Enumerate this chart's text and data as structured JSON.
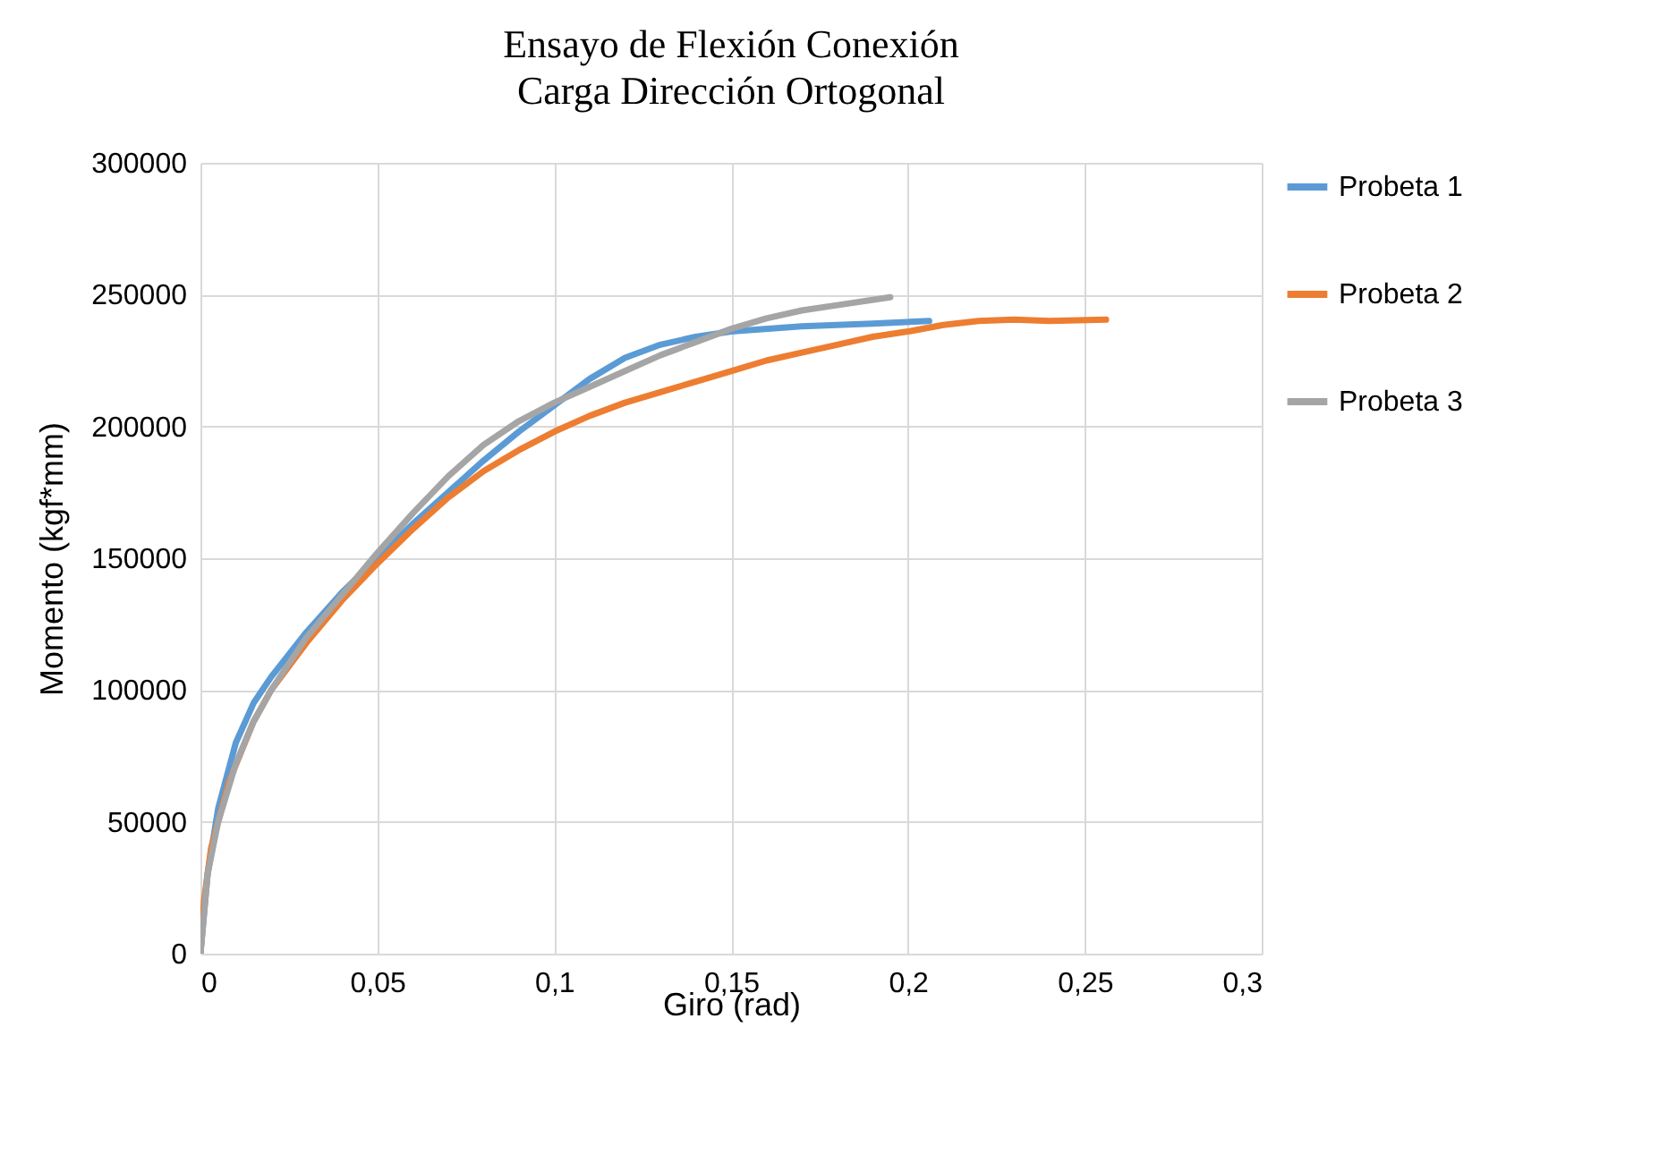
{
  "chart_data": {
    "type": "line",
    "title": "Ensayo de Flexión Conexión",
    "subtitle": "Carga Dirección Ortogonal",
    "xlabel": "Giro (rad)",
    "ylabel": "Momento (kgf*mm)",
    "xlim": [
      0,
      0.3
    ],
    "xticks": [
      0,
      {
        "value": 0.05,
        "label": "0,05"
      },
      {
        "value": 0.1,
        "label": "0,1"
      },
      {
        "value": 0.15,
        "label": "0,15"
      },
      {
        "value": 0.2,
        "label": "0,2"
      },
      {
        "value": 0.25,
        "label": "0,25"
      },
      {
        "value": 0.3,
        "label": "0,3"
      }
    ],
    "ylim": [
      0,
      300000
    ],
    "yticks": [
      0,
      50000,
      100000,
      150000,
      200000,
      250000,
      300000
    ],
    "grid": true,
    "legend": "right",
    "series": [
      {
        "name": "Probeta 1",
        "color": "#5b9bd5",
        "x": [
          0,
          0.002,
          0.005,
          0.01,
          0.015,
          0.02,
          0.03,
          0.04,
          0.05,
          0.06,
          0.07,
          0.08,
          0.09,
          0.1,
          0.11,
          0.12,
          0.13,
          0.14,
          0.15,
          0.17,
          0.19,
          0.206
        ],
        "values": [
          0,
          30000,
          55000,
          80000,
          95000,
          105000,
          122000,
          137000,
          150000,
          163000,
          175000,
          187000,
          198000,
          208000,
          218000,
          226000,
          231000,
          234000,
          236000,
          238000,
          239000,
          240000
        ]
      },
      {
        "name": "Probeta 2",
        "color": "#ed7d31",
        "x": [
          0,
          0.001,
          0.003,
          0.008,
          0.015,
          0.02,
          0.03,
          0.04,
          0.05,
          0.06,
          0.07,
          0.08,
          0.09,
          0.1,
          0.11,
          0.12,
          0.13,
          0.14,
          0.15,
          0.16,
          0.17,
          0.18,
          0.19,
          0.2,
          0.21,
          0.22,
          0.23,
          0.24,
          0.256
        ],
        "values": [
          0,
          20000,
          40000,
          65000,
          88000,
          100000,
          118000,
          134000,
          148000,
          161000,
          173000,
          183000,
          191000,
          198000,
          204000,
          209000,
          213000,
          217000,
          221000,
          225000,
          228000,
          231000,
          234000,
          236000,
          238500,
          240000,
          240500,
          240000,
          240500
        ]
      },
      {
        "name": "Probeta 3",
        "color": "#a5a5a5",
        "x": [
          0,
          0.002,
          0.005,
          0.01,
          0.015,
          0.02,
          0.03,
          0.04,
          0.05,
          0.06,
          0.07,
          0.08,
          0.09,
          0.1,
          0.11,
          0.12,
          0.13,
          0.14,
          0.15,
          0.16,
          0.17,
          0.18,
          0.195
        ],
        "values": [
          0,
          30000,
          50000,
          72000,
          88000,
          100000,
          120000,
          136000,
          152000,
          167000,
          181000,
          193000,
          202000,
          209000,
          215000,
          221000,
          227000,
          232000,
          237000,
          241000,
          244000,
          246000,
          249000
        ]
      }
    ]
  }
}
